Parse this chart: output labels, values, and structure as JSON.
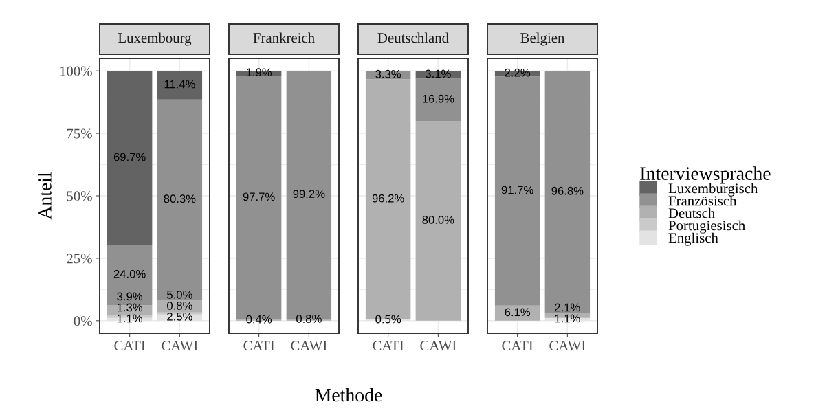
{
  "chart_data": [
    {
      "type": "bar",
      "title": "Luxembourg",
      "ylabel": "Anteil",
      "categories": [
        "CATI",
        "CAWI"
      ],
      "stacked": true,
      "ylim": [
        -5,
        105
      ],
      "yticks": [
        {
          "value": 0,
          "label": "0%"
        },
        {
          "value": 25,
          "label": "25%"
        },
        {
          "value": 50,
          "label": "50%"
        },
        {
          "value": 75,
          "label": "75%"
        },
        {
          "value": 100,
          "label": "100%"
        }
      ],
      "grid": true,
      "legend": "right",
      "legend_title": "Interviewsprache",
      "series": [
        {
          "name": "Englisch",
          "color": "#e3e3e3",
          "values": [
            1.1,
            2.5
          ],
          "value_labels": [
            "1.1%",
            "2.5%"
          ]
        },
        {
          "name": "Portugiesisch",
          "color": "#cacaca",
          "values": [
            1.3,
            0.8
          ],
          "value_labels": [
            "1.3%",
            "0.8%"
          ]
        },
        {
          "name": "Deutsch",
          "color": "#b1b1b1",
          "values": [
            3.9,
            5.0
          ],
          "value_labels": [
            "3.9%",
            "5.0%"
          ]
        },
        {
          "name": "Französisch",
          "color": "#919191",
          "values": [
            24.0,
            80.3
          ],
          "value_labels": [
            "24.0%",
            "80.3%"
          ]
        },
        {
          "name": "Luxemburgisch",
          "color": "#636363",
          "values": [
            69.7,
            11.4
          ],
          "value_labels": [
            "69.7%",
            "11.4%"
          ]
        }
      ]
    },
    {
      "type": "bar",
      "title": "Frankreich",
      "xlabel": "Methode",
      "categories": [
        "CATI",
        "CAWI"
      ],
      "stacked": true,
      "ylim": [
        -5,
        105
      ],
      "yticks": [
        {
          "value": 0,
          "label": null
        },
        {
          "value": 25,
          "label": null
        },
        {
          "value": 50,
          "label": null
        },
        {
          "value": 75,
          "label": null
        },
        {
          "value": 100,
          "label": null
        }
      ],
      "grid": true,
      "tick_labels": "x",
      "series": [
        {
          "color": "#e3e3e3",
          "values": [
            null,
            null
          ]
        },
        {
          "color": "#cacaca",
          "values": [
            null,
            null
          ]
        },
        {
          "color": "#b1b1b1",
          "values": [
            0.4,
            0.8
          ],
          "value_labels": [
            "0.4%",
            "0.8%"
          ]
        },
        {
          "color": "#919191",
          "values": [
            97.7,
            99.2
          ],
          "value_labels": [
            "97.7%",
            "99.2%"
          ]
        },
        {
          "color": "#636363",
          "values": [
            1.9,
            null
          ],
          "value_labels": [
            "1.9%",
            null
          ]
        }
      ]
    },
    {
      "type": "bar",
      "title": "Deutschland",
      "categories": [
        "CATI",
        "CAWI"
      ],
      "stacked": true,
      "ylim": [
        -5,
        105
      ],
      "yticks": [
        {
          "value": 0,
          "label": null
        },
        {
          "value": 25,
          "label": null
        },
        {
          "value": 50,
          "label": null
        },
        {
          "value": 75,
          "label": null
        },
        {
          "value": 100,
          "label": null
        }
      ],
      "grid": true,
      "tick_labels": "x",
      "series": [
        {
          "color": "#e3e3e3",
          "values": [
            0.5,
            null
          ],
          "value_labels": [
            "0.5%",
            null
          ]
        },
        {
          "color": "#cacaca",
          "values": [
            null,
            null
          ]
        },
        {
          "color": "#b1b1b1",
          "values": [
            96.2,
            80.0
          ],
          "value_labels": [
            "96.2%",
            "80.0%"
          ]
        },
        {
          "color": "#919191",
          "values": [
            3.3,
            16.9
          ],
          "value_labels": [
            "3.3%",
            "16.9%"
          ]
        },
        {
          "color": "#636363",
          "values": [
            null,
            3.1
          ],
          "value_labels": [
            null,
            "3.1%"
          ]
        }
      ]
    },
    {
      "type": "bar",
      "title": "Belgien",
      "categories": [
        "CATI",
        "CAWI"
      ],
      "stacked": true,
      "ylim": [
        -5,
        105
      ],
      "yticks": [
        {
          "value": 0,
          "label": null
        },
        {
          "value": 25,
          "label": null
        },
        {
          "value": 50,
          "label": null
        },
        {
          "value": 75,
          "label": null
        },
        {
          "value": 100,
          "label": null
        }
      ],
      "grid": true,
      "tick_labels": "x",
      "series": [
        {
          "color": "#e3e3e3",
          "values": [
            null,
            1.1
          ],
          "value_labels": [
            null,
            "1.1%"
          ]
        },
        {
          "color": "#cacaca",
          "values": [
            null,
            null
          ]
        },
        {
          "color": "#b1b1b1",
          "values": [
            6.1,
            2.1
          ],
          "value_labels": [
            "6.1%",
            "2.1%"
          ]
        },
        {
          "color": "#919191",
          "values": [
            91.7,
            96.8
          ],
          "value_labels": [
            "91.7%",
            "96.8%"
          ]
        },
        {
          "color": "#636363",
          "values": [
            2.2,
            null
          ],
          "value_labels": [
            "2.2%",
            null
          ]
        }
      ]
    }
  ]
}
